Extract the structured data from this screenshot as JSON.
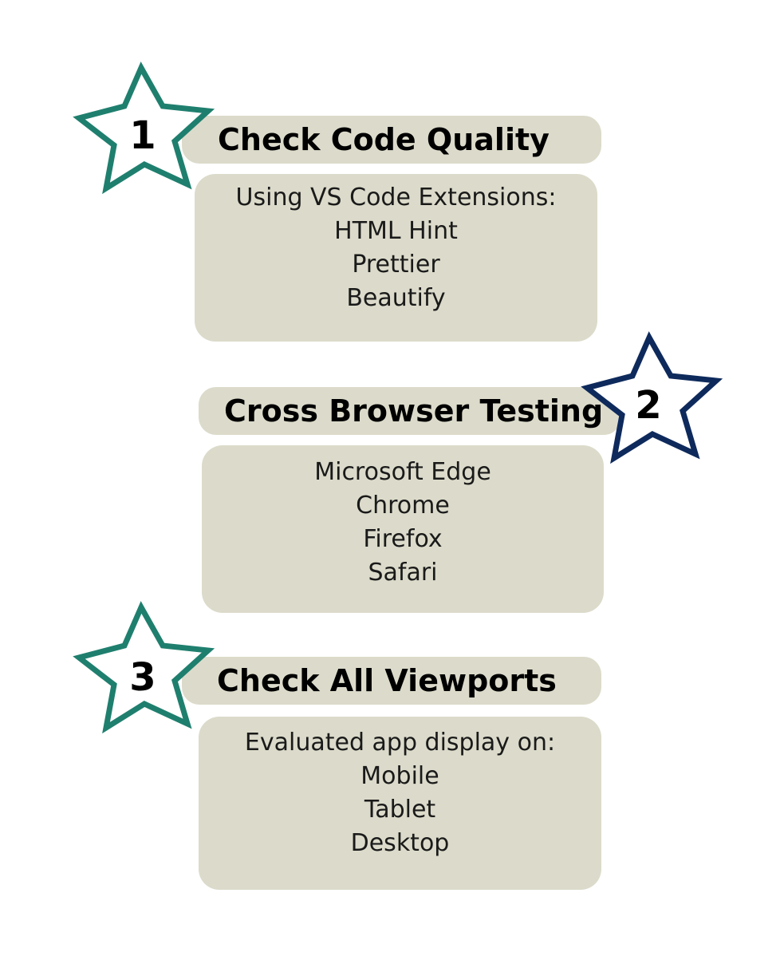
{
  "steps": [
    {
      "number": "1",
      "title": "Check Code Quality",
      "lines": [
        "Using VS Code Extensions:",
        "HTML Hint",
        "Prettier",
        "Beautify"
      ],
      "star_color": "#1f7f6e"
    },
    {
      "number": "2",
      "title": "Cross Browser Testing",
      "lines": [
        "Microsoft Edge",
        "Chrome",
        "Firefox",
        "Safari"
      ],
      "star_color": "#0e2a5c"
    },
    {
      "number": "3",
      "title": "Check All Viewports",
      "lines": [
        "Evaluated app display on:",
        "Mobile",
        "Tablet",
        "Desktop"
      ],
      "star_color": "#1f7f6e"
    }
  ],
  "box_color": "#dcdbcb"
}
